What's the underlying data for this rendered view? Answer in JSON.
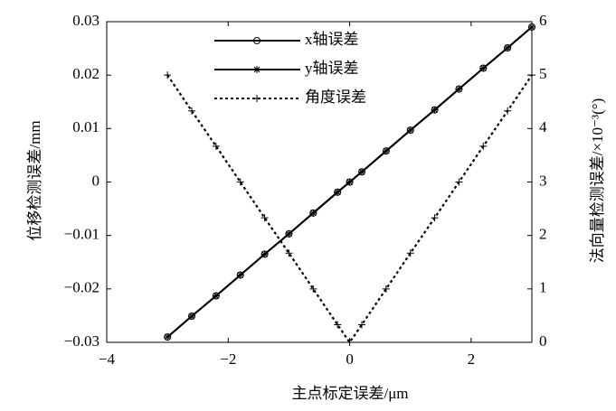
{
  "chart_data": {
    "type": "line",
    "x_label": "主点标定误差/μm",
    "y_label": "位移检测误差/mm",
    "y2_label": "法向量检测误差/×10⁻³(°)",
    "x": [
      -3,
      -2.6,
      -2.2,
      -1.8,
      -1.4,
      -1,
      -0.6,
      -0.2,
      0,
      0.2,
      0.6,
      1,
      1.4,
      1.8,
      2.2,
      2.6,
      3
    ],
    "series": [
      {
        "name": "x轴误差",
        "color": "#000000",
        "marker": "o",
        "dash": "solid",
        "values": [
          -0.029,
          -0.0251,
          -0.0213,
          -0.0174,
          -0.0135,
          -0.0097,
          -0.0058,
          -0.0019,
          0,
          0.0019,
          0.0058,
          0.0097,
          0.0135,
          0.0174,
          0.0213,
          0.0251,
          0.029
        ]
      },
      {
        "name": "y轴误差",
        "color": "#000000",
        "marker": "*",
        "dash": "solid",
        "values": [
          -0.029,
          -0.0251,
          -0.0213,
          -0.0174,
          -0.0135,
          -0.0097,
          -0.0058,
          -0.0019,
          0,
          0.0019,
          0.0058,
          0.0097,
          0.0135,
          0.0174,
          0.0213,
          0.0251,
          0.029
        ]
      },
      {
        "name": "角度误差",
        "color": "#000000",
        "marker": "+",
        "dash": "dotted",
        "axis": "y2",
        "values": [
          5,
          4.33,
          3.67,
          3,
          2.33,
          1.67,
          1,
          0.33,
          0,
          0.33,
          1,
          1.67,
          2.33,
          3,
          3.67,
          4.33,
          5
        ]
      }
    ],
    "xlim": [
      -4,
      3
    ],
    "xticks": [
      {
        "value": -4,
        "label": "−4"
      },
      {
        "value": -2,
        "label": "−2"
      },
      0,
      2
    ],
    "ylim": [
      -0.03,
      0.03
    ],
    "yticks": [
      {
        "value": -0.03,
        "label": "−0.03"
      },
      {
        "value": -0.02,
        "label": "−0.02"
      },
      {
        "value": -0.01,
        "label": "−0.01"
      },
      0,
      0.01,
      0.02,
      0.03
    ],
    "y2lim": [
      0,
      6
    ],
    "y2ticks": [
      0,
      1,
      2,
      3,
      4,
      5,
      6
    ],
    "grid": false,
    "legend": "upper-left"
  }
}
